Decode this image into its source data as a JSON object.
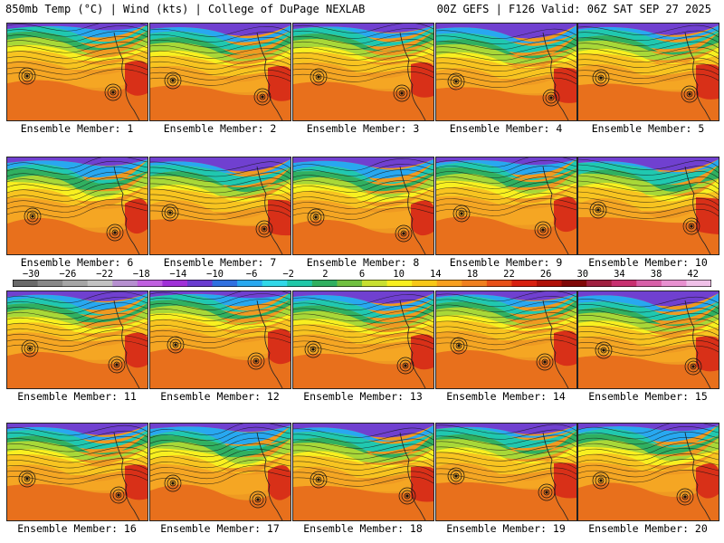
{
  "header": {
    "left": "850mb Temp (°C) | Wind (kts) | College of DuPage NEXLAB",
    "right": "00Z GEFS | F126 Valid: 06Z SAT SEP 27 2025"
  },
  "colorbar": {
    "labels": [
      "-30",
      "-26",
      "-22",
      "-18",
      "-14",
      "-10",
      "-6",
      "-2",
      "2",
      "6",
      "10",
      "14",
      "18",
      "22",
      "26",
      "30",
      "34",
      "38",
      "42"
    ],
    "min": -32,
    "max": 44,
    "colors": [
      "#6a6a6a",
      "#888888",
      "#a6a6a6",
      "#c2c2c2",
      "#b68fd0",
      "#c060e0",
      "#a030d8",
      "#6a3cd0",
      "#3070e0",
      "#28a8f0",
      "#30d8e8",
      "#20c8a8",
      "#30b060",
      "#70c040",
      "#c8e030",
      "#f8f020",
      "#f8c818",
      "#f8a020",
      "#f08020",
      "#e85018",
      "#d82010",
      "#b01008",
      "#800808",
      "#a02040",
      "#c83070",
      "#d860a8",
      "#e890d0",
      "#f0c0e8"
    ]
  },
  "panels": [
    {
      "label": "Ensemble Member: 1"
    },
    {
      "label": "Ensemble Member: 2"
    },
    {
      "label": "Ensemble Member: 3"
    },
    {
      "label": "Ensemble Member: 4"
    },
    {
      "label": "Ensemble Member: 5"
    },
    {
      "label": "Ensemble Member: 6"
    },
    {
      "label": "Ensemble Member: 7"
    },
    {
      "label": "Ensemble Member: 8"
    },
    {
      "label": "Ensemble Member: 9"
    },
    {
      "label": "Ensemble Member: 10"
    },
    {
      "label": "Ensemble Member: 11"
    },
    {
      "label": "Ensemble Member: 12"
    },
    {
      "label": "Ensemble Member: 13"
    },
    {
      "label": "Ensemble Member: 14"
    },
    {
      "label": "Ensemble Member: 15"
    },
    {
      "label": "Ensemble Member: 16"
    },
    {
      "label": "Ensemble Member: 17"
    },
    {
      "label": "Ensemble Member: 18"
    },
    {
      "label": "Ensemble Member: 19"
    },
    {
      "label": "Ensemble Member: 20"
    }
  ]
}
